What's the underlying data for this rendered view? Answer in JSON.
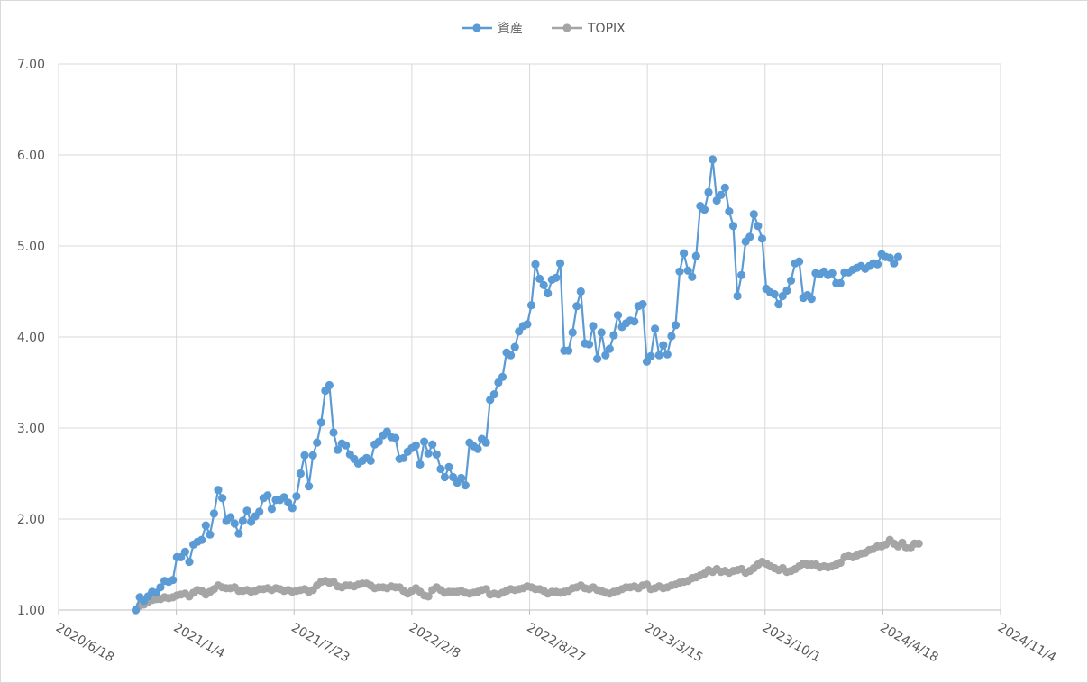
{
  "chart_data": {
    "type": "line",
    "title": "",
    "xlabel": "",
    "ylabel": "",
    "xlim": [
      "2020-06-18",
      "2024-11-04"
    ],
    "ylim": [
      1.0,
      7.0
    ],
    "x_tick_labels": [
      "2020/6/18",
      "2021/1/4",
      "2021/7/23",
      "2022/2/8",
      "2022/8/27",
      "2023/3/15",
      "2023/10/1",
      "2024/4/18",
      "2024/11/4"
    ],
    "y_tick_labels": [
      "1.00",
      "2.00",
      "3.00",
      "4.00",
      "5.00",
      "6.00",
      "7.00"
    ],
    "grid": true,
    "legend_position": "top-center",
    "colors": {
      "asset": "#5b9bd5",
      "topix": "#a5a5a5",
      "grid": "#d9d9d9"
    },
    "series": [
      {
        "name": "資産",
        "x_start": "2020-10-27",
        "step_days": 7,
        "values": [
          1.0,
          1.14,
          1.1,
          1.15,
          1.2,
          1.19,
          1.25,
          1.32,
          1.31,
          1.33,
          1.58,
          1.58,
          1.64,
          1.53,
          1.72,
          1.75,
          1.77,
          1.93,
          1.83,
          2.06,
          2.32,
          2.23,
          1.98,
          2.02,
          1.95,
          1.84,
          1.98,
          2.09,
          1.97,
          2.03,
          2.08,
          2.23,
          2.26,
          2.11,
          2.21,
          2.21,
          2.24,
          2.18,
          2.12,
          2.25,
          2.5,
          2.7,
          2.36,
          2.7,
          2.84,
          3.06,
          3.41,
          3.47,
          2.95,
          2.76,
          2.83,
          2.81,
          2.71,
          2.66,
          2.61,
          2.64,
          2.67,
          2.64,
          2.82,
          2.85,
          2.92,
          2.96,
          2.9,
          2.89,
          2.66,
          2.67,
          2.74,
          2.78,
          2.81,
          2.6,
          2.85,
          2.72,
          2.82,
          2.71,
          2.55,
          2.46,
          2.57,
          2.46,
          2.4,
          2.45,
          2.37,
          2.84,
          2.8,
          2.77,
          2.88,
          2.84,
          3.31,
          3.37,
          3.5,
          3.56,
          3.83,
          3.8,
          3.89,
          4.06,
          4.12,
          4.14,
          4.35,
          4.8,
          4.64,
          4.57,
          4.48,
          4.63,
          4.65,
          4.81,
          3.85,
          3.85,
          4.05,
          4.34,
          4.5,
          3.93,
          3.92,
          4.12,
          3.76,
          4.05,
          3.8,
          3.87,
          4.02,
          4.24,
          4.11,
          4.15,
          4.18,
          4.17,
          4.34,
          4.36,
          3.73,
          3.79,
          4.09,
          3.8,
          3.91,
          3.81,
          4.01,
          4.13,
          4.72,
          4.92,
          4.73,
          4.66,
          4.89,
          5.44,
          5.4,
          5.59,
          5.95,
          5.5,
          5.56,
          5.64,
          5.38,
          5.22,
          4.45,
          4.68,
          5.05,
          5.1,
          5.35,
          5.22,
          5.08,
          4.53,
          4.49,
          4.47,
          4.36,
          4.45,
          4.51,
          4.62,
          4.81,
          4.83,
          4.43,
          4.46,
          4.42,
          4.7,
          4.69,
          4.72,
          4.68,
          4.7,
          4.59,
          4.59,
          4.71,
          4.71,
          4.74,
          4.76,
          4.78,
          4.75,
          4.78,
          4.81,
          4.8,
          4.91,
          4.88,
          4.87,
          4.81,
          4.88
        ]
      },
      {
        "name": "TOPIX",
        "x_start": "2020-10-27",
        "step_days": 7,
        "values": [
          1.0,
          1.05,
          1.06,
          1.09,
          1.11,
          1.12,
          1.12,
          1.14,
          1.13,
          1.14,
          1.16,
          1.17,
          1.18,
          1.15,
          1.19,
          1.22,
          1.21,
          1.17,
          1.2,
          1.23,
          1.27,
          1.25,
          1.24,
          1.24,
          1.25,
          1.21,
          1.21,
          1.22,
          1.2,
          1.21,
          1.23,
          1.23,
          1.24,
          1.22,
          1.24,
          1.23,
          1.21,
          1.22,
          1.2,
          1.21,
          1.22,
          1.23,
          1.2,
          1.22,
          1.27,
          1.31,
          1.32,
          1.3,
          1.31,
          1.26,
          1.25,
          1.27,
          1.27,
          1.26,
          1.28,
          1.29,
          1.29,
          1.27,
          1.24,
          1.25,
          1.25,
          1.24,
          1.26,
          1.25,
          1.25,
          1.21,
          1.18,
          1.21,
          1.24,
          1.2,
          1.16,
          1.15,
          1.22,
          1.25,
          1.22,
          1.19,
          1.2,
          1.2,
          1.2,
          1.21,
          1.19,
          1.18,
          1.19,
          1.2,
          1.22,
          1.23,
          1.17,
          1.18,
          1.17,
          1.19,
          1.21,
          1.23,
          1.22,
          1.23,
          1.24,
          1.26,
          1.25,
          1.23,
          1.23,
          1.21,
          1.18,
          1.2,
          1.2,
          1.19,
          1.2,
          1.21,
          1.24,
          1.25,
          1.27,
          1.24,
          1.23,
          1.25,
          1.22,
          1.21,
          1.19,
          1.18,
          1.2,
          1.21,
          1.23,
          1.25,
          1.25,
          1.26,
          1.24,
          1.27,
          1.28,
          1.23,
          1.24,
          1.26,
          1.24,
          1.25,
          1.27,
          1.28,
          1.3,
          1.31,
          1.32,
          1.35,
          1.36,
          1.38,
          1.4,
          1.44,
          1.42,
          1.45,
          1.42,
          1.43,
          1.41,
          1.43,
          1.44,
          1.45,
          1.41,
          1.43,
          1.46,
          1.5,
          1.53,
          1.51,
          1.48,
          1.46,
          1.44,
          1.46,
          1.42,
          1.43,
          1.45,
          1.48,
          1.51,
          1.5,
          1.5,
          1.5,
          1.47,
          1.48,
          1.47,
          1.48,
          1.5,
          1.52,
          1.58,
          1.59,
          1.58,
          1.6,
          1.62,
          1.63,
          1.66,
          1.67,
          1.7,
          1.7,
          1.72,
          1.77,
          1.73,
          1.7,
          1.74,
          1.68,
          1.68,
          1.73,
          1.73
        ]
      }
    ]
  }
}
